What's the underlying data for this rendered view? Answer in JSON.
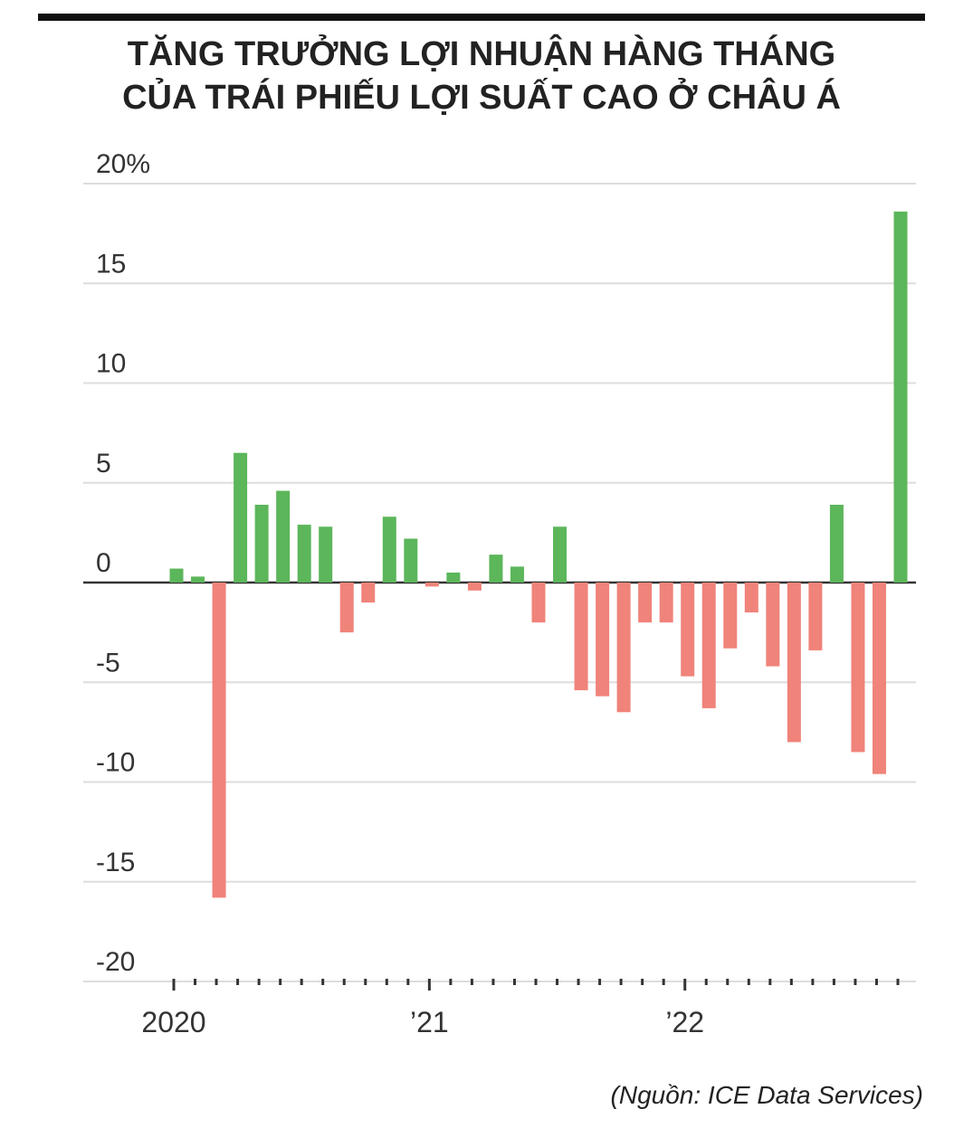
{
  "chart_data": {
    "type": "bar",
    "title": [
      "TĂNG TRƯỞNG LỢI NHUẬN HÀNG THÁNG",
      "CỦA TRÁI PHIẾU LỢI SUẤT CAO Ở CHÂU Á"
    ],
    "source": "(Nguồn: ICE Data Services)",
    "categories": [
      "2020",
      null,
      null,
      null,
      null,
      null,
      null,
      null,
      null,
      null,
      null,
      null,
      "’21",
      null,
      null,
      null,
      null,
      null,
      null,
      null,
      null,
      null,
      null,
      null,
      "’22",
      null,
      null,
      null,
      null,
      null,
      null,
      null,
      null,
      null,
      null
    ],
    "values": [
      0.7,
      0.3,
      -15.8,
      6.5,
      3.9,
      4.6,
      2.9,
      2.8,
      -2.5,
      -1.0,
      3.3,
      2.2,
      -0.2,
      0.5,
      -0.4,
      1.4,
      0.8,
      -2.0,
      2.8,
      -5.4,
      -5.7,
      -6.5,
      -2.0,
      -2.0,
      -4.7,
      -6.3,
      -3.3,
      -1.5,
      -4.2,
      -8.0,
      -3.4,
      3.9,
      -8.5,
      -9.6,
      18.6
    ],
    "positive_color": "#5cb65a",
    "negative_color": "#f0837a",
    "ylim": [
      -20,
      20
    ],
    "yticks": [
      {
        "value": 20,
        "label": "20%"
      },
      15,
      10,
      5,
      0,
      -5,
      -10,
      -15,
      -20
    ],
    "grid": true
  }
}
